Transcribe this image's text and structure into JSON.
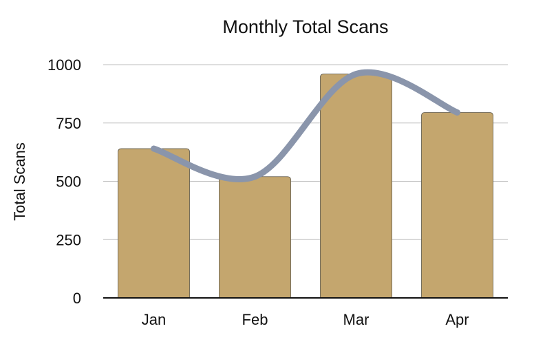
{
  "chart_data": {
    "type": "bar",
    "title": "Monthly Total Scans",
    "xlabel": "",
    "ylabel": "Total Scans",
    "categories": [
      "Jan",
      "Feb",
      "Mar",
      "Apr"
    ],
    "series": [
      {
        "values": [
          640,
          520,
          960,
          795
        ]
      }
    ],
    "overlay_line": {
      "values": [
        640,
        520,
        960,
        795
      ],
      "smooth": true
    },
    "ylim": [
      0,
      1000
    ],
    "yticks": [
      0,
      250,
      500,
      750,
      1000
    ],
    "grid": true,
    "legend": "none",
    "colors": {
      "bar": "#c4a66e",
      "line": "#8a95ab"
    }
  }
}
